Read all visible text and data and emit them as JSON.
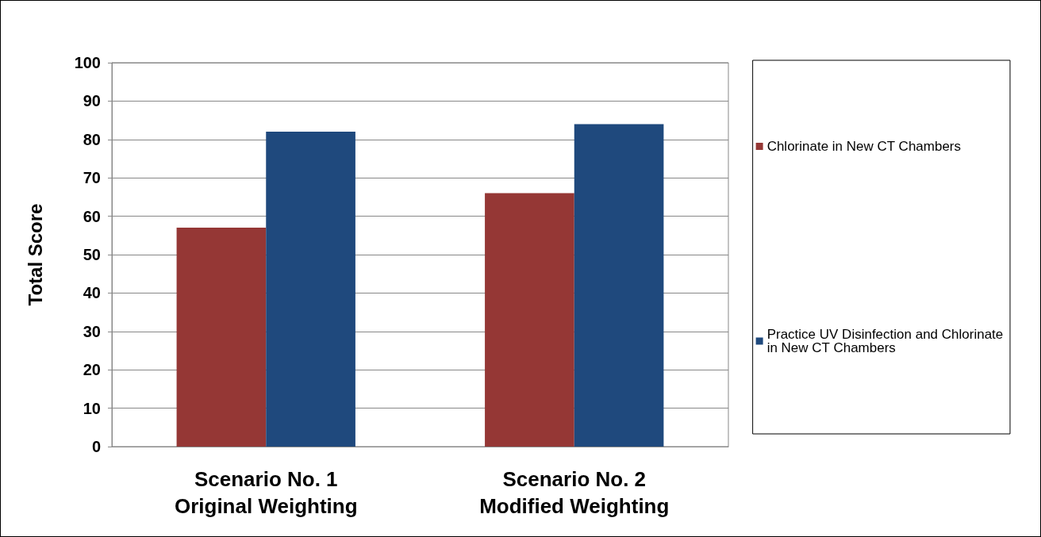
{
  "chart_data": {
    "type": "bar",
    "ylabel": "Total Score",
    "categories": [
      "Scenario No. 1\nOriginal Weighting",
      "Scenario No. 2\nModified Weighting"
    ],
    "series": [
      {
        "name": "Chlorinate in New CT Chambers",
        "color": "#953735",
        "values": [
          57,
          66
        ]
      },
      {
        "name": "Practice UV Disinfection and Chlorinate in New CT Chambers",
        "color": "#1f497d",
        "values": [
          82,
          84
        ]
      }
    ],
    "ylim": [
      0,
      100
    ],
    "yticks": [
      0,
      10,
      20,
      30,
      40,
      50,
      60,
      70,
      80,
      90,
      100
    ],
    "grid": "y",
    "legend": "right"
  }
}
